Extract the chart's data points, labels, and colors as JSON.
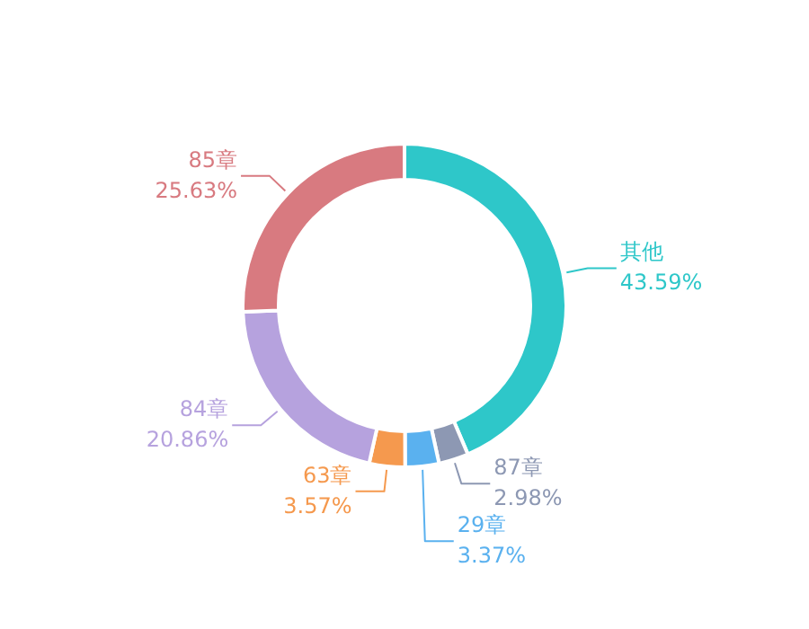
{
  "chart_data": {
    "type": "donut",
    "categories": [
      "其他",
      "87章",
      "29章",
      "63章",
      "84章",
      "85章"
    ],
    "values": [
      43.59,
      2.98,
      3.37,
      3.57,
      20.86,
      25.63
    ],
    "value_labels": [
      "43.59%",
      "2.98%",
      "3.37%",
      "3.57%",
      "20.86%",
      "25.63%"
    ],
    "colors": [
      "#2ec7c9",
      "#8d98b3",
      "#5ab1ef",
      "#f5994e",
      "#b6a2de",
      "#d87a80"
    ]
  }
}
